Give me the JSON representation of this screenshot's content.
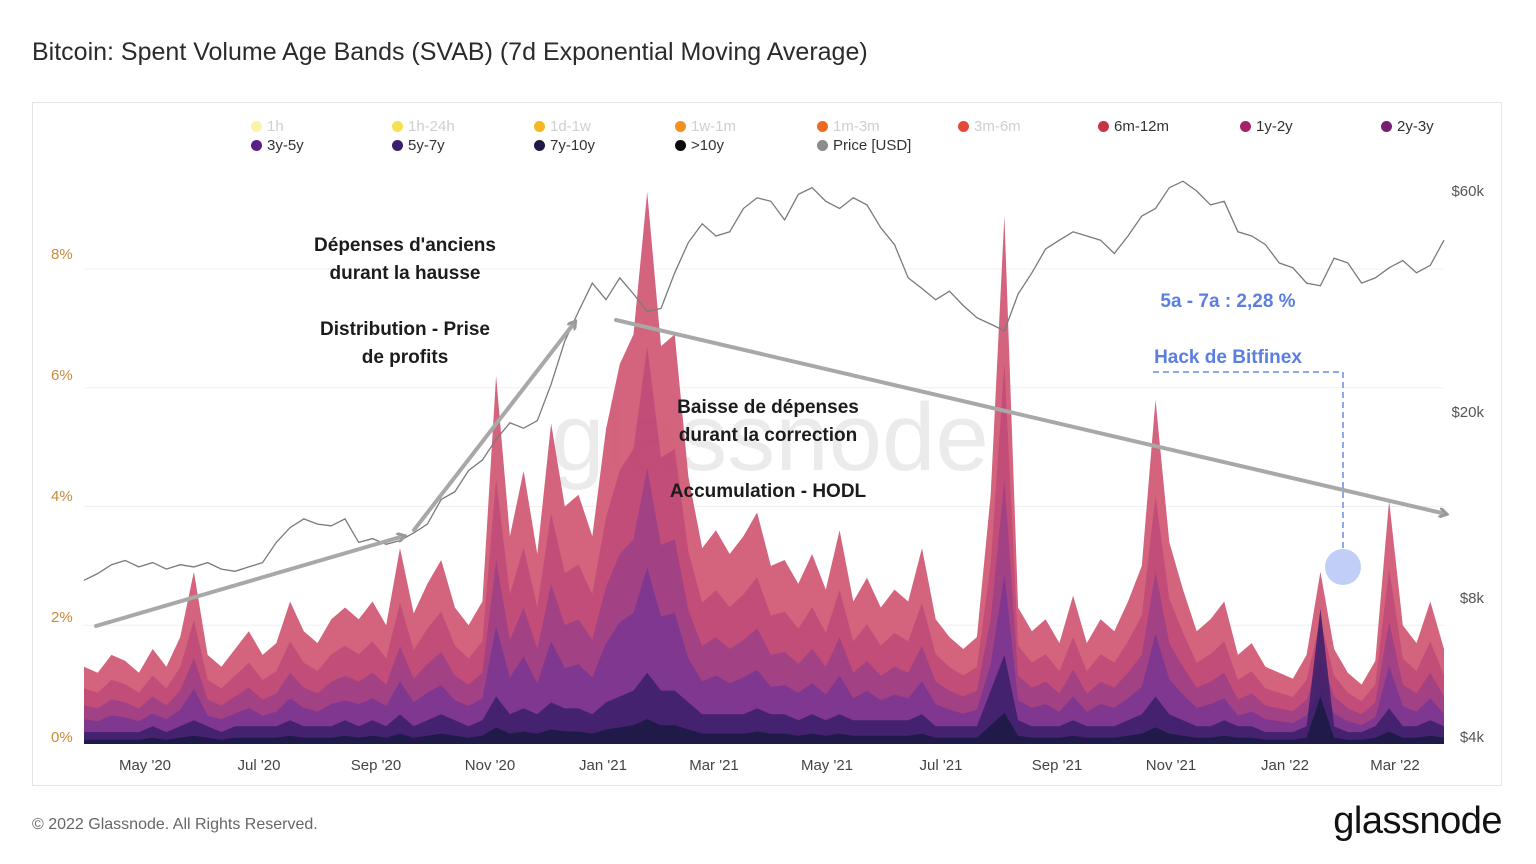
{
  "title": "Bitcoin: Spent Volume Age Bands (SVAB) (7d Exponential Moving Average)",
  "footer": "© 2022 Glassnode. All Rights Reserved.",
  "brand": "glassnode",
  "watermark": "glassnode",
  "annotations": {
    "rally_line1": "Dépenses d'anciens",
    "rally_line2": "durant la hausse",
    "distribution_line1": "Distribution - Prise",
    "distribution_line2": "de profits",
    "correction_line1": "Baisse de dépenses",
    "correction_line2": "durant la correction",
    "accumulation": "Accumulation - HODL",
    "band_value": "5a - 7a : 2,28 %",
    "hack": "Hack de Bitfinex"
  },
  "chart_data": {
    "type": "area",
    "x_ticks": [
      "May '20",
      "Jul '20",
      "Sep '20",
      "Nov '20",
      "Jan '21",
      "Mar '21",
      "May '21",
      "Jul '21",
      "Sep '21",
      "Nov '21",
      "Jan '22",
      "Mar '22"
    ],
    "y_left_ticks": [
      "0%",
      "2%",
      "4%",
      "6%",
      "8%"
    ],
    "y_right_ticks": [
      "$4k",
      "$8k",
      "$20k",
      "$60k"
    ],
    "ylim_left": [
      0,
      9.5
    ],
    "legend": [
      {
        "name": "1h",
        "color": "#fbf3a6",
        "active": false
      },
      {
        "name": "1h-24h",
        "color": "#f7df52",
        "active": false
      },
      {
        "name": "1d-1w",
        "color": "#f5b723",
        "active": false
      },
      {
        "name": "1w-1m",
        "color": "#f2911b",
        "active": false
      },
      {
        "name": "1m-3m",
        "color": "#ee6a22",
        "active": false
      },
      {
        "name": "3m-6m",
        "color": "#e04a37",
        "active": false
      },
      {
        "name": "6m-12m",
        "color": "#c6344a",
        "active": true
      },
      {
        "name": "1y-2y",
        "color": "#a12566",
        "active": true
      },
      {
        "name": "2y-3y",
        "color": "#7a1d74",
        "active": true
      },
      {
        "name": "3y-5y",
        "color": "#5b1f84",
        "active": true
      },
      {
        "name": "5y-7y",
        "color": "#3a1f6a",
        "active": true
      },
      {
        "name": "7y-10y",
        "color": "#1d1a45",
        "active": true
      },
      {
        "name": ">10y",
        "color": "#0a0a0a",
        "active": true
      },
      {
        "name": "Price [USD]",
        "color": "#8c8c8c",
        "active": true
      }
    ],
    "spend_total_pct": [
      1.3,
      1.2,
      1.5,
      1.4,
      1.2,
      1.6,
      1.3,
      1.8,
      2.9,
      1.5,
      1.3,
      1.6,
      1.9,
      1.5,
      1.7,
      2.4,
      1.9,
      1.7,
      2.1,
      2.3,
      2.1,
      2.4,
      2.0,
      3.3,
      2.2,
      2.7,
      3.1,
      2.3,
      2.0,
      2.4,
      6.2,
      3.5,
      4.6,
      3.2,
      5.4,
      4.0,
      4.2,
      3.5,
      5.3,
      6.4,
      6.9,
      9.3,
      6.7,
      6.9,
      4.5,
      3.3,
      3.6,
      3.2,
      3.5,
      3.9,
      3.0,
      3.1,
      2.7,
      3.2,
      2.6,
      3.6,
      2.4,
      2.8,
      2.3,
      2.6,
      2.4,
      3.3,
      2.1,
      1.8,
      1.6,
      1.8,
      4.2,
      8.9,
      2.3,
      1.9,
      2.1,
      1.7,
      2.5,
      1.7,
      2.1,
      1.9,
      2.4,
      3.0,
      5.8,
      3.4,
      2.6,
      1.9,
      2.1,
      2.4,
      1.5,
      1.7,
      1.3,
      1.2,
      1.1,
      1.5,
      2.9,
      1.6,
      1.2,
      1.0,
      1.4,
      4.1,
      2.0,
      1.7,
      2.4,
      1.6
    ],
    "band_5y7y_pct": [
      0.2,
      0.2,
      0.2,
      0.2,
      0.2,
      0.3,
      0.2,
      0.3,
      0.4,
      0.3,
      0.2,
      0.3,
      0.3,
      0.3,
      0.3,
      0.4,
      0.3,
      0.3,
      0.3,
      0.4,
      0.3,
      0.4,
      0.3,
      0.5,
      0.3,
      0.4,
      0.5,
      0.4,
      0.3,
      0.4,
      0.8,
      0.5,
      0.6,
      0.5,
      0.7,
      0.6,
      0.6,
      0.5,
      0.7,
      0.8,
      0.9,
      1.2,
      0.9,
      0.9,
      0.7,
      0.5,
      0.5,
      0.5,
      0.5,
      0.6,
      0.5,
      0.5,
      0.4,
      0.5,
      0.4,
      0.5,
      0.4,
      0.4,
      0.4,
      0.4,
      0.4,
      0.5,
      0.3,
      0.3,
      0.3,
      0.3,
      0.9,
      1.5,
      0.4,
      0.3,
      0.3,
      0.3,
      0.4,
      0.3,
      0.3,
      0.3,
      0.4,
      0.5,
      0.8,
      0.5,
      0.4,
      0.3,
      0.3,
      0.4,
      0.3,
      0.3,
      0.2,
      0.2,
      0.2,
      0.3,
      2.28,
      0.3,
      0.2,
      0.2,
      0.3,
      0.6,
      0.3,
      0.3,
      0.4,
      0.3
    ],
    "price_usd": [
      8700,
      9000,
      9400,
      9600,
      9300,
      9500,
      9200,
      9400,
      9300,
      9500,
      9200,
      9100,
      9300,
      9500,
      10500,
      11300,
      11800,
      11500,
      11400,
      11800,
      10500,
      10700,
      10400,
      10600,
      11000,
      11500,
      13000,
      13500,
      15000,
      15800,
      17500,
      19000,
      18500,
      19200,
      23000,
      28500,
      33000,
      38000,
      35000,
      39000,
      36000,
      33000,
      33500,
      40000,
      46500,
      51000,
      48000,
      49000,
      55000,
      58000,
      57000,
      52000,
      59000,
      61000,
      57000,
      55000,
      58000,
      56000,
      50000,
      46000,
      39000,
      37000,
      35000,
      36500,
      34000,
      32000,
      31000,
      30000,
      36000,
      40000,
      45000,
      47000,
      49000,
      48000,
      47000,
      44000,
      48000,
      53000,
      55000,
      61000,
      63000,
      60000,
      56000,
      57000,
      49000,
      48000,
      46000,
      42000,
      41000,
      38000,
      37500,
      43000,
      42000,
      38000,
      39000,
      41000,
      42500,
      40000,
      41500,
      47000
    ],
    "trend_arrows": [
      {
        "from": [
          "Apr '20",
          2.0
        ],
        "to": [
          "Sep '20",
          3.4
        ]
      },
      {
        "from": [
          "Sep '20",
          3.5
        ],
        "to": [
          "Dec '20",
          7.0
        ]
      },
      {
        "from": [
          "Jan '21",
          7.0
        ],
        "to": [
          "Apr '22",
          3.8
        ]
      }
    ],
    "highlight": {
      "label": "Hack de Bitfinex",
      "x": "Feb '22",
      "band": "5y-7y",
      "value": 2.28
    }
  }
}
